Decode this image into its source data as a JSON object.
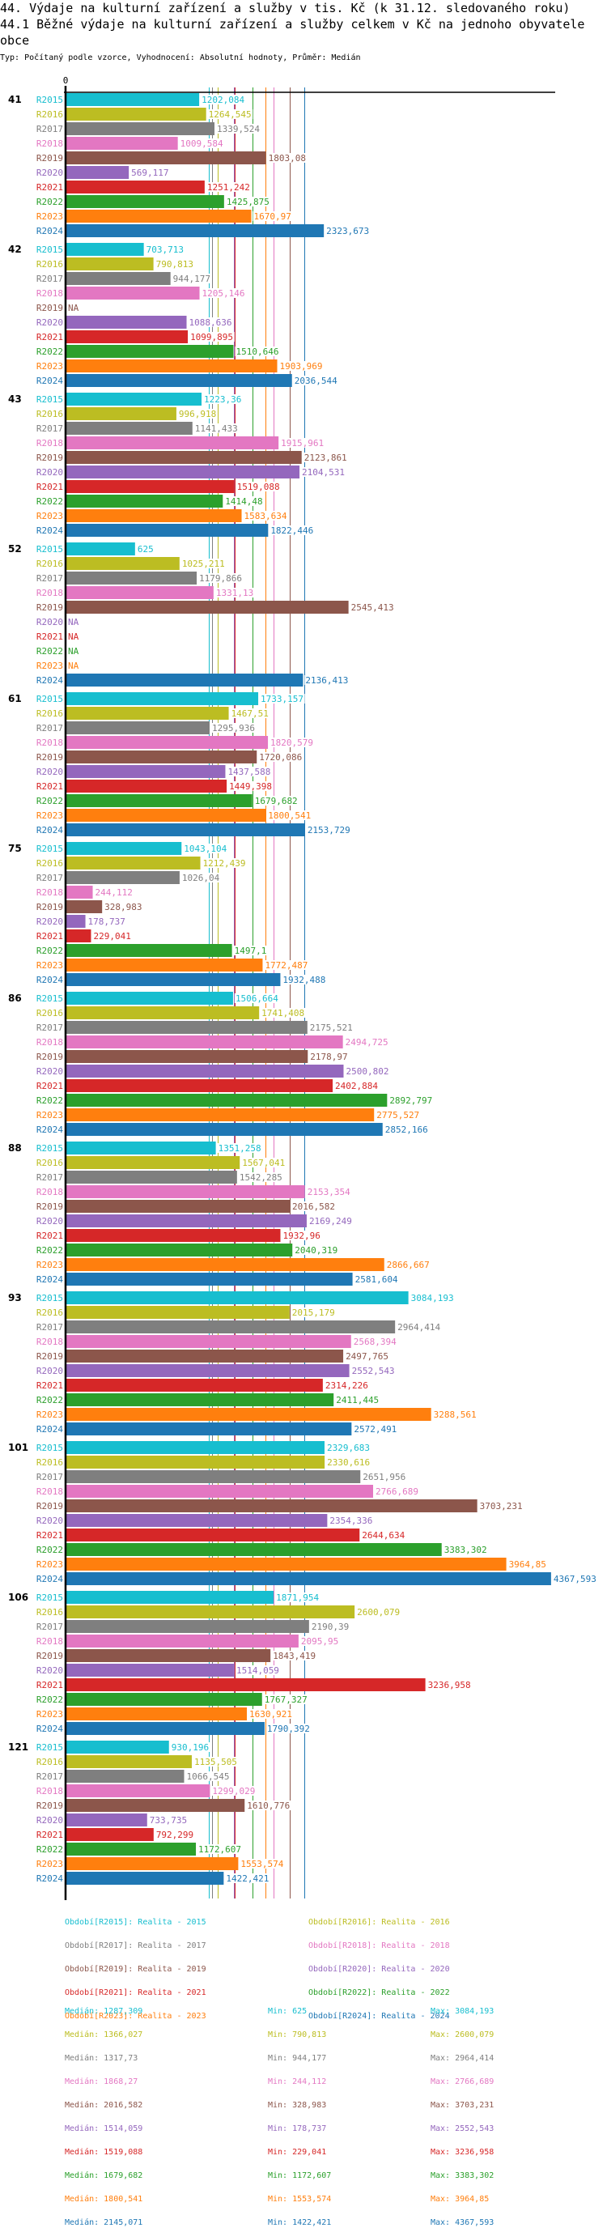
{
  "header": {
    "title": "44. Výdaje na kulturní zařízení a služby v tis. Kč (k 31.12. sledovaného roku)",
    "subtitle": "44.1 Běžné výdaje na kulturní zařízení a služby celkem v Kč na jednoho obyvatele obce",
    "type_line": "Typ: Počítaný podle vzorce, Vyhodnocení: Absolutní hodnoty, Průměr: Medián"
  },
  "chart_data": {
    "type": "bar",
    "orientation": "horizontal",
    "title": "44.1 Běžné výdaje na kulturní zařízení a služby celkem v Kč na jednoho obyvatele obce",
    "xlabel": "",
    "ylabel": "",
    "x_tick_labels": [
      "0"
    ],
    "xlim": [
      0,
      4367.593
    ],
    "grid": false,
    "legend_position": "bottom",
    "decimal_separator": ",",
    "categories": [
      "41",
      "42",
      "43",
      "52",
      "61",
      "75",
      "86",
      "88",
      "93",
      "101",
      "106",
      "121"
    ],
    "series": [
      {
        "name": "R2015",
        "color": "#17becf",
        "values": [
          1202.084,
          703.713,
          1223.36,
          625,
          1733.157,
          1043.104,
          1506.664,
          1351.258,
          3084.193,
          2329.683,
          1871.954,
          930.196
        ]
      },
      {
        "name": "R2016",
        "color": "#bcbd22",
        "values": [
          1264.545,
          790.813,
          996.918,
          1025.211,
          1467.51,
          1212.439,
          1741.408,
          1567.041,
          2015.179,
          2330.616,
          2600.079,
          1135.505
        ]
      },
      {
        "name": "R2017",
        "color": "#7f7f7f",
        "values": [
          1339.524,
          944.177,
          1141.433,
          1179.866,
          1295.936,
          1026.04,
          2175.521,
          1542.285,
          2964.414,
          2651.956,
          2190.39,
          1066.545
        ]
      },
      {
        "name": "R2018",
        "color": "#e377c2",
        "values": [
          1009.584,
          1205.146,
          1915.961,
          1331.13,
          1820.579,
          244.112,
          2494.725,
          2153.354,
          2568.394,
          2766.689,
          2095.95,
          1299.029
        ]
      },
      {
        "name": "R2019",
        "color": "#8c564b",
        "values": [
          1803.08,
          null,
          2123.861,
          2545.413,
          1720.086,
          328.983,
          2178.97,
          2016.582,
          2497.765,
          3703.231,
          1843.419,
          1610.776
        ]
      },
      {
        "name": "R2020",
        "color": "#9467bd",
        "values": [
          569.117,
          1088.636,
          2104.531,
          null,
          1437.588,
          178.737,
          2500.802,
          2169.249,
          2552.543,
          2354.336,
          1514.059,
          733.735
        ]
      },
      {
        "name": "R2021",
        "color": "#d62728",
        "values": [
          1251.242,
          1099.895,
          1519.088,
          null,
          1449.398,
          229.041,
          2402.884,
          1932.96,
          2314.226,
          2644.634,
          3236.958,
          792.299
        ]
      },
      {
        "name": "R2022",
        "color": "#2ca02c",
        "values": [
          1425.875,
          1510.646,
          1414.48,
          null,
          1679.682,
          1497.1,
          2892.797,
          2040.319,
          2411.445,
          3383.302,
          1767.327,
          1172.607
        ]
      },
      {
        "name": "R2023",
        "color": "#ff7f0e",
        "values": [
          1670.97,
          1903.969,
          1583.634,
          null,
          1800.541,
          1772.487,
          2775.527,
          2866.667,
          3288.561,
          3964.85,
          1630.921,
          1553.574
        ]
      },
      {
        "name": "R2024",
        "color": "#1f77b4",
        "values": [
          2323.673,
          2036.544,
          1822.446,
          2136.413,
          2153.729,
          1932.488,
          2852.166,
          2581.604,
          2572.491,
          4367.593,
          1790.392,
          1422.421
        ]
      }
    ],
    "na_label": "NA",
    "reference_lines": "median per series",
    "legend": [
      {
        "series": "R2015",
        "text": "Období[R2015]: Realita - 2015"
      },
      {
        "series": "R2016",
        "text": "Období[R2016]: Realita - 2016"
      },
      {
        "series": "R2017",
        "text": "Období[R2017]: Realita - 2017"
      },
      {
        "series": "R2018",
        "text": "Období[R2018]: Realita - 2018"
      },
      {
        "series": "R2019",
        "text": "Období[R2019]: Realita - 2019"
      },
      {
        "series": "R2020",
        "text": "Období[R2020]: Realita - 2020"
      },
      {
        "series": "R2021",
        "text": "Období[R2021]: Realita - 2021"
      },
      {
        "series": "R2022",
        "text": "Období[R2022]: Realita - 2022"
      },
      {
        "series": "R2023",
        "text": "Období[R2023]: Realita - 2023"
      },
      {
        "series": "R2024",
        "text": "Období[R2024]: Realita - 2024"
      }
    ],
    "stats": [
      {
        "series": "R2015",
        "median": 1287.309,
        "min": 625,
        "max": 3084.193,
        "median_text": "Medián: 1287,309",
        "min_text": "Min: 625",
        "max_text": "Max: 3084,193"
      },
      {
        "series": "R2016",
        "median": 1366.027,
        "min": 790.813,
        "max": 2600.079,
        "median_text": "Medián: 1366,027",
        "min_text": "Min: 790,813",
        "max_text": "Max: 2600,079"
      },
      {
        "series": "R2017",
        "median": 1317.73,
        "min": 944.177,
        "max": 2964.414,
        "median_text": "Medián: 1317,73",
        "min_text": "Min: 944,177",
        "max_text": "Max: 2964,414"
      },
      {
        "series": "R2018",
        "median": 1868.27,
        "min": 244.112,
        "max": 2766.689,
        "median_text": "Medián: 1868,27",
        "min_text": "Min: 244,112",
        "max_text": "Max: 2766,689"
      },
      {
        "series": "R2019",
        "median": 2016.582,
        "min": 328.983,
        "max": 3703.231,
        "median_text": "Medián: 2016,582",
        "min_text": "Min: 328,983",
        "max_text": "Max: 3703,231"
      },
      {
        "series": "R2020",
        "median": 1514.059,
        "min": 178.737,
        "max": 2552.543,
        "median_text": "Medián: 1514,059",
        "min_text": "Min: 178,737",
        "max_text": "Max: 2552,543"
      },
      {
        "series": "R2021",
        "median": 1519.088,
        "min": 229.041,
        "max": 3236.958,
        "median_text": "Medián: 1519,088",
        "min_text": "Min: 229,041",
        "max_text": "Max: 3236,958"
      },
      {
        "series": "R2022",
        "median": 1679.682,
        "min": 1172.607,
        "max": 3383.302,
        "median_text": "Medián: 1679,682",
        "min_text": "Min: 1172,607",
        "max_text": "Max: 3383,302"
      },
      {
        "series": "R2023",
        "median": 1800.541,
        "min": 1553.574,
        "max": 3964.85,
        "median_text": "Medián: 1800,541",
        "min_text": "Min: 1553,574",
        "max_text": "Max: 3964,85"
      },
      {
        "series": "R2024",
        "median": 2145.071,
        "min": 1422.421,
        "max": 4367.593,
        "median_text": "Medián: 2145,071",
        "min_text": "Min: 1422,421",
        "max_text": "Max: 4367,593"
      }
    ]
  }
}
